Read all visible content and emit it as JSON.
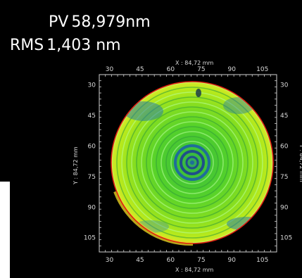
{
  "stats": {
    "pv_label": "PV",
    "pv_value": "58,979nm",
    "rms_label": "RMS",
    "rms_value": "1,403   nm"
  },
  "axes": {
    "x_title": "X : 84,72 mm",
    "y_title": "Y : 84,72 mm",
    "x_ticks": [
      "30",
      "45",
      "60",
      "75",
      "90",
      "105"
    ],
    "y_ticks": [
      "30",
      "45",
      "60",
      "75",
      "90",
      "105"
    ]
  },
  "colors": {
    "background": "#000000",
    "map_center": "#37c23a",
    "map_outer": "#a6e81a",
    "ring_dark": "#1f6d9a",
    "edge_red": "#e02010"
  }
}
